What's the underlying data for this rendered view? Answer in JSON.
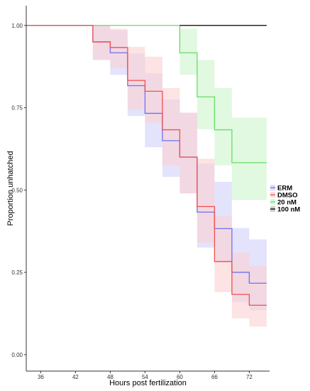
{
  "chart_data": {
    "type": "step",
    "title": "",
    "xlabel": "Hours post fertilization",
    "ylabel": "Proportion unhatched",
    "xlim": [
      33.5,
      75.5
    ],
    "ylim": [
      -0.05,
      1.06
    ],
    "x_ticks": [
      36,
      42,
      48,
      54,
      60,
      66,
      72
    ],
    "y_ticks": [
      0.0,
      0.25,
      0.5,
      0.75,
      1.0
    ],
    "y_tick_labels": [
      "0.00",
      "0.25",
      "0.50",
      "0.75",
      "1.00"
    ],
    "grid": false,
    "legend_position": "right",
    "legend_order": [
      "ERM",
      "DMSO",
      "20 nM",
      "100 nM"
    ],
    "series": [
      {
        "name": "20 nM",
        "color": "#66dd66",
        "band_color": "#ccf5cc",
        "steps": [
          {
            "x0": 33.5,
            "x1": 60,
            "y": 1.0,
            "lo": 1.0,
            "hi": 1.0
          },
          {
            "x0": 60,
            "x1": 63,
            "y": 0.917,
            "lo": 0.85,
            "hi": 0.99
          },
          {
            "x0": 63,
            "x1": 66,
            "y": 0.783,
            "lo": 0.685,
            "hi": 0.895
          },
          {
            "x0": 66,
            "x1": 69,
            "y": 0.683,
            "lo": 0.575,
            "hi": 0.81
          },
          {
            "x0": 69,
            "x1": 75,
            "y": 0.583,
            "lo": 0.47,
            "hi": 0.72
          }
        ]
      },
      {
        "name": "100 nM",
        "color": "#000000",
        "band_color": "#bbbbbb",
        "steps": [
          {
            "x0": 60,
            "x1": 75,
            "y": 1.0,
            "lo": 1.0,
            "hi": 1.0
          }
        ]
      },
      {
        "name": "ERM",
        "color": "#7070f0",
        "band_color": "#d0d0fa",
        "steps": [
          {
            "x0": 33.5,
            "x1": 45,
            "y": 1.0,
            "lo": 1.0,
            "hi": 1.0
          },
          {
            "x0": 45,
            "x1": 48,
            "y": 0.95,
            "lo": 0.895,
            "hi": 1.0
          },
          {
            "x0": 48,
            "x1": 51,
            "y": 0.917,
            "lo": 0.85,
            "hi": 0.985
          },
          {
            "x0": 51,
            "x1": 54,
            "y": 0.817,
            "lo": 0.725,
            "hi": 0.915
          },
          {
            "x0": 54,
            "x1": 57,
            "y": 0.733,
            "lo": 0.63,
            "hi": 0.855
          },
          {
            "x0": 57,
            "x1": 60,
            "y": 0.65,
            "lo": 0.54,
            "hi": 0.775
          },
          {
            "x0": 60,
            "x1": 63,
            "y": 0.6,
            "lo": 0.49,
            "hi": 0.735
          },
          {
            "x0": 63,
            "x1": 66,
            "y": 0.433,
            "lo": 0.325,
            "hi": 0.58
          },
          {
            "x0": 66,
            "x1": 69,
            "y": 0.383,
            "lo": 0.28,
            "hi": 0.525
          },
          {
            "x0": 69,
            "x1": 72,
            "y": 0.25,
            "lo": 0.16,
            "hi": 0.385
          },
          {
            "x0": 72,
            "x1": 75,
            "y": 0.217,
            "lo": 0.135,
            "hi": 0.35
          }
        ]
      },
      {
        "name": "DMSO",
        "color": "#f05050",
        "band_color": "#fbd0d0",
        "steps": [
          {
            "x0": 33.5,
            "x1": 45,
            "y": 1.0,
            "lo": 1.0,
            "hi": 1.0
          },
          {
            "x0": 45,
            "x1": 48,
            "y": 0.95,
            "lo": 0.895,
            "hi": 1.0
          },
          {
            "x0": 48,
            "x1": 51,
            "y": 0.933,
            "lo": 0.87,
            "hi": 0.99
          },
          {
            "x0": 51,
            "x1": 54,
            "y": 0.833,
            "lo": 0.745,
            "hi": 0.935
          },
          {
            "x0": 54,
            "x1": 57,
            "y": 0.8,
            "lo": 0.705,
            "hi": 0.905
          },
          {
            "x0": 57,
            "x1": 60,
            "y": 0.683,
            "lo": 0.575,
            "hi": 0.81
          },
          {
            "x0": 60,
            "x1": 63,
            "y": 0.6,
            "lo": 0.49,
            "hi": 0.735
          },
          {
            "x0": 63,
            "x1": 66,
            "y": 0.45,
            "lo": 0.34,
            "hi": 0.595
          },
          {
            "x0": 66,
            "x1": 69,
            "y": 0.283,
            "lo": 0.19,
            "hi": 0.42
          },
          {
            "x0": 69,
            "x1": 72,
            "y": 0.183,
            "lo": 0.11,
            "hi": 0.31
          },
          {
            "x0": 72,
            "x1": 75,
            "y": 0.15,
            "lo": 0.085,
            "hi": 0.27
          }
        ]
      }
    ]
  }
}
